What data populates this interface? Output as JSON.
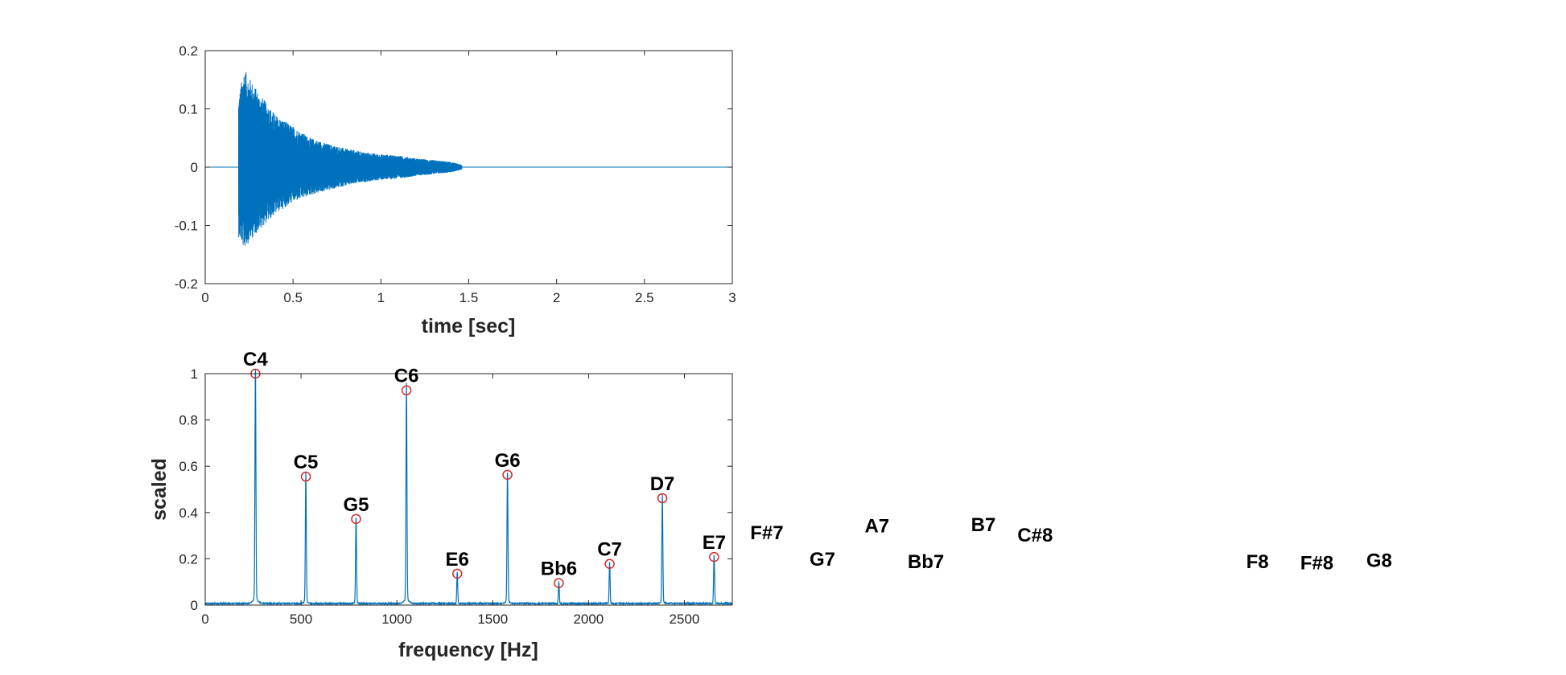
{
  "chart_data": [
    {
      "type": "line",
      "title": "",
      "xlabel": "time [sec]",
      "ylabel": "",
      "xlim": [
        0,
        3
      ],
      "ylim": [
        -0.2,
        0.2
      ],
      "xticks": [
        "0",
        "0.5",
        "1",
        "1.5",
        "2",
        "2.5",
        "3"
      ],
      "yticks": [
        "-0.2",
        "-0.1",
        "0",
        "0.1",
        "0.2"
      ],
      "grid": false,
      "line_color": "#0072BD",
      "signal": {
        "onset": 0.19,
        "end": 1.46,
        "peak_positive": 0.17,
        "peak_negative": -0.14,
        "envelope": [
          {
            "t": 0.19,
            "pos": 0.12,
            "neg": -0.12
          },
          {
            "t": 0.22,
            "pos": 0.17,
            "neg": -0.14
          },
          {
            "t": 0.3,
            "pos": 0.13,
            "neg": -0.11
          },
          {
            "t": 0.4,
            "pos": 0.09,
            "neg": -0.08
          },
          {
            "t": 0.5,
            "pos": 0.07,
            "neg": -0.06
          },
          {
            "t": 0.6,
            "pos": 0.05,
            "neg": -0.048
          },
          {
            "t": 0.7,
            "pos": 0.04,
            "neg": -0.04
          },
          {
            "t": 0.8,
            "pos": 0.032,
            "neg": -0.032
          },
          {
            "t": 0.9,
            "pos": 0.026,
            "neg": -0.026
          },
          {
            "t": 1.0,
            "pos": 0.022,
            "neg": -0.022
          },
          {
            "t": 1.1,
            "pos": 0.02,
            "neg": -0.02
          },
          {
            "t": 1.2,
            "pos": 0.015,
            "neg": -0.015
          },
          {
            "t": 1.3,
            "pos": 0.012,
            "neg": -0.012
          },
          {
            "t": 1.4,
            "pos": 0.009,
            "neg": -0.009
          },
          {
            "t": 1.46,
            "pos": 0.004,
            "neg": -0.004
          }
        ]
      }
    },
    {
      "type": "line",
      "title": "",
      "xlabel": "frequency [Hz]",
      "ylabel": "scaled",
      "xlim": [
        0,
        2750
      ],
      "ylim": [
        0,
        1
      ],
      "xticks": [
        "0",
        "500",
        "1000",
        "1500",
        "2000",
        "2500"
      ],
      "yticks": [
        "0",
        "0.2",
        "0.4",
        "0.6",
        "0.8",
        "1"
      ],
      "grid": false,
      "line_color": "#0072BD",
      "marker_color": "#D62728",
      "peaks": [
        {
          "label": "C4",
          "x": 262,
          "y": 1.0
        },
        {
          "label": "C5",
          "x": 525,
          "y": 0.555
        },
        {
          "label": "G5",
          "x": 787,
          "y": 0.372
        },
        {
          "label": "C6",
          "x": 1050,
          "y": 0.928
        },
        {
          "label": "E6",
          "x": 1315,
          "y": 0.136
        },
        {
          "label": "G6",
          "x": 1577,
          "y": 0.563
        },
        {
          "label": "Bb6",
          "x": 1845,
          "y": 0.095
        },
        {
          "label": "C7",
          "x": 2110,
          "y": 0.178
        },
        {
          "label": "D7",
          "x": 2385,
          "y": 0.462
        },
        {
          "label": "E7",
          "x": 2655,
          "y": 0.208
        }
      ],
      "out_of_range_labels": [
        {
          "label": "F#7",
          "x": 2930,
          "y": 0.25
        },
        {
          "label": "G7",
          "x": 3220,
          "y": 0.135
        },
        {
          "label": "A7",
          "x": 3505,
          "y": 0.28
        },
        {
          "label": "Bb7",
          "x": 3760,
          "y": 0.125
        },
        {
          "label": "B7",
          "x": 4060,
          "y": 0.285
        },
        {
          "label": "C#8",
          "x": 4330,
          "y": 0.24
        },
        {
          "label": "F8",
          "x": 5490,
          "y": 0.125
        },
        {
          "label": "F#8",
          "x": 5800,
          "y": 0.12
        },
        {
          "label": "G8",
          "x": 6125,
          "y": 0.13
        }
      ]
    }
  ]
}
